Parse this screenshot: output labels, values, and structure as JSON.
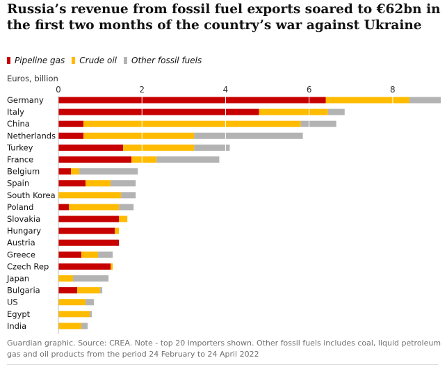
{
  "title": "Russia’s revenue from fossil fuel exports soared to €62bn in the first two months of the country’s war against Ukraine",
  "legend": [
    {
      "label": "Pipeline gas",
      "color": "#c70000"
    },
    {
      "label": "Crude oil",
      "color": "#ffbb00"
    },
    {
      "label": "Other fossil fuels",
      "color": "#b3b3b3"
    }
  ],
  "units": "Euros, billion",
  "footnote": "Guardian graphic. Source: CREA. Note - top 20 importers shown. Other fossil fuels includes coal, liquid petroleum gas and oil products from the period 24 February to 24 April 2022",
  "chart_data": {
    "type": "bar",
    "orientation": "horizontal",
    "stacked": true,
    "title": "Russia’s revenue from fossil fuel exports soared to €62bn in the first two months of the country’s war against Ukraine",
    "xlabel": "Euros, billion",
    "ylabel": "",
    "xlim": [
      0,
      9.1
    ],
    "xticks": [
      0,
      2,
      4,
      6,
      8
    ],
    "categories": [
      "Germany",
      "Italy",
      "China",
      "Netherlands",
      "Turkey",
      "France",
      "Belgium",
      "Spain",
      "South Korea",
      "Poland",
      "Slovakia",
      "Hungary",
      "Austria",
      "Greece",
      "Czech Rep",
      "Japan",
      "Bulgaria",
      "US",
      "Egypt",
      "India"
    ],
    "series": [
      {
        "name": "Pipeline gas",
        "color": "#c70000",
        "values": [
          6.4,
          4.8,
          0.6,
          0.6,
          1.55,
          1.75,
          0.3,
          0.65,
          0,
          0.25,
          1.45,
          1.35,
          1.45,
          0.55,
          1.25,
          0,
          0.45,
          0,
          0,
          0
        ]
      },
      {
        "name": "Crude oil",
        "color": "#ffbb00",
        "values": [
          2.0,
          1.65,
          5.2,
          2.65,
          1.7,
          0.6,
          0.2,
          0.6,
          1.5,
          1.2,
          0.2,
          0.1,
          0,
          0.4,
          0.05,
          0.35,
          0.55,
          0.65,
          0.75,
          0.55
        ]
      },
      {
        "name": "Other fossil fuels",
        "color": "#b3b3b3",
        "values": [
          0.75,
          0.4,
          0.85,
          2.6,
          0.85,
          1.5,
          1.4,
          0.6,
          0.35,
          0.35,
          0,
          0,
          0,
          0.35,
          0,
          0.85,
          0.05,
          0.2,
          0.05,
          0.15
        ]
      }
    ]
  }
}
